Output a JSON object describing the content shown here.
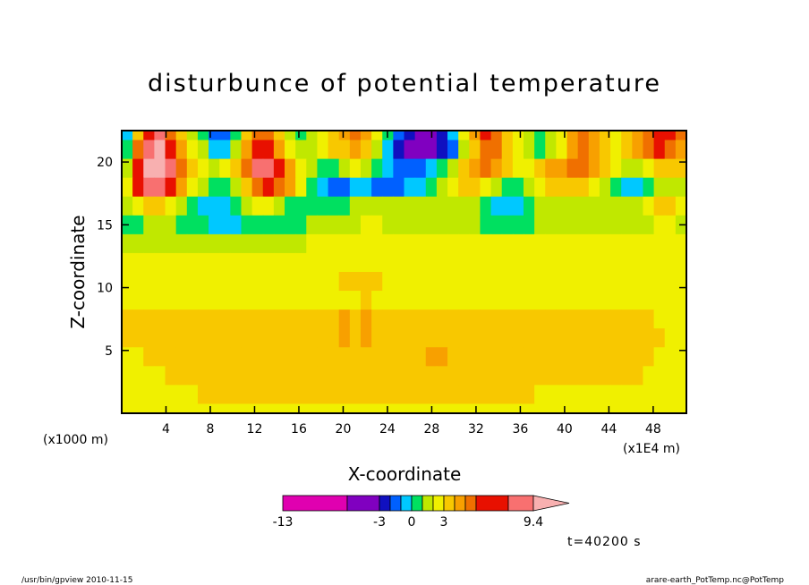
{
  "chart_data": {
    "type": "heatmap",
    "title": "disturbunce of potential temperature",
    "xlabel": "X-coordinate",
    "ylabel": "Z-coordinate",
    "x_unit": "(x1E4 m)",
    "y_unit": "(x1000 m)",
    "x_ticks": [
      "4",
      "8",
      "12",
      "16",
      "20",
      "24",
      "28",
      "32",
      "36",
      "40",
      "44",
      "48"
    ],
    "y_ticks": [
      "5",
      "10",
      "15",
      "20"
    ],
    "xlim": [
      0,
      51
    ],
    "ylim": [
      0,
      22.5
    ],
    "colorbar": {
      "labels": [
        "-13",
        "-3",
        "0",
        "3",
        "9.4"
      ],
      "colors": [
        "#e000b0",
        "#8000c0",
        "#1010c0",
        "#0060ff",
        "#00c8ff",
        "#00e060",
        "#c0e800",
        "#f0f000",
        "#f8c800",
        "#f8a000",
        "#f07000",
        "#e81000",
        "#f87070",
        "#f8b0b0"
      ]
    },
    "time_label": "t=40200 s",
    "rows": [
      {
        "z": 22.5,
        "values": [
          4,
          8,
          11,
          12,
          10,
          8,
          6,
          5,
          3,
          3,
          5,
          8,
          10,
          10,
          8,
          6,
          5,
          6,
          7,
          8,
          9,
          10,
          9,
          7,
          5,
          3,
          2,
          1,
          1,
          2,
          4,
          7,
          9,
          11,
          10,
          8,
          7,
          6,
          5,
          6,
          7,
          9,
          10,
          9,
          8,
          7,
          8,
          9,
          10,
          11,
          11,
          10
        ]
      },
      {
        "z": 21.0,
        "values": [
          5,
          10,
          12,
          13,
          11,
          9,
          7,
          6,
          4,
          4,
          6,
          9,
          11,
          11,
          9,
          7,
          6,
          6,
          7,
          8,
          8,
          9,
          8,
          6,
          4,
          2,
          1,
          1,
          1,
          2,
          3,
          6,
          8,
          10,
          10,
          8,
          7,
          6,
          5,
          6,
          7,
          9,
          10,
          9,
          8,
          7,
          8,
          9,
          10,
          11,
          10,
          9
        ]
      },
      {
        "z": 19.5,
        "values": [
          6,
          11,
          13,
          13,
          12,
          10,
          8,
          7,
          6,
          7,
          8,
          10,
          12,
          12,
          11,
          9,
          7,
          6,
          5,
          5,
          6,
          7,
          6,
          5,
          4,
          3,
          3,
          3,
          4,
          5,
          6,
          8,
          9,
          10,
          9,
          8,
          7,
          7,
          8,
          9,
          9,
          10,
          10,
          9,
          8,
          7,
          6,
          6,
          7,
          8,
          8,
          8
        ]
      },
      {
        "z": 18.0,
        "values": [
          7,
          11,
          12,
          12,
          11,
          9,
          7,
          6,
          5,
          5,
          6,
          8,
          10,
          11,
          10,
          9,
          7,
          5,
          4,
          3,
          3,
          4,
          4,
          3,
          3,
          3,
          4,
          4,
          5,
          6,
          7,
          8,
          8,
          7,
          6,
          5,
          5,
          6,
          7,
          8,
          8,
          8,
          8,
          7,
          6,
          5,
          4,
          4,
          5,
          6,
          6,
          6
        ]
      },
      {
        "z": 16.5,
        "values": [
          6,
          7,
          8,
          8,
          7,
          6,
          5,
          4,
          4,
          4,
          5,
          6,
          7,
          7,
          6,
          5,
          5,
          5,
          5,
          5,
          5,
          6,
          6,
          6,
          6,
          6,
          6,
          6,
          6,
          6,
          6,
          6,
          6,
          5,
          4,
          4,
          4,
          5,
          6,
          6,
          6,
          6,
          6,
          6,
          6,
          6,
          6,
          6,
          7,
          8,
          8,
          7
        ]
      },
      {
        "z": 15.0,
        "values": [
          5,
          5,
          6,
          6,
          6,
          5,
          5,
          5,
          4,
          4,
          4,
          5,
          5,
          5,
          5,
          5,
          5,
          6,
          6,
          6,
          6,
          6,
          7,
          7,
          6,
          6,
          6,
          6,
          6,
          6,
          6,
          6,
          6,
          5,
          5,
          5,
          5,
          5,
          6,
          6,
          6,
          6,
          6,
          6,
          6,
          6,
          6,
          6,
          6,
          7,
          7,
          6
        ]
      },
      {
        "z": 13.5,
        "values": [
          6,
          6,
          6,
          6,
          6,
          6,
          6,
          6,
          6,
          6,
          6,
          6,
          6,
          6,
          6,
          6,
          6,
          7,
          7,
          7,
          7,
          7,
          7,
          7,
          7,
          7,
          7,
          7,
          7,
          7,
          7,
          7,
          7,
          7,
          7,
          7,
          7,
          7,
          7,
          7,
          7,
          7,
          7,
          7,
          7,
          7,
          7,
          7,
          7,
          7,
          7,
          7
        ]
      },
      {
        "z": 12.0,
        "values": [
          7,
          7,
          7,
          7,
          7,
          7,
          7,
          7,
          7,
          7,
          7,
          7,
          7,
          7,
          7,
          7,
          7,
          7,
          7,
          7,
          7,
          7,
          7,
          7,
          7,
          7,
          7,
          7,
          7,
          7,
          7,
          7,
          7,
          7,
          7,
          7,
          7,
          7,
          7,
          7,
          7,
          7,
          7,
          7,
          7,
          7,
          7,
          7,
          7,
          7,
          7,
          7
        ]
      },
      {
        "z": 10.5,
        "values": [
          7,
          7,
          7,
          7,
          7,
          7,
          7,
          7,
          7,
          7,
          7,
          7,
          7,
          7,
          7,
          7,
          7,
          7,
          7,
          7,
          8,
          8,
          8,
          8,
          7,
          7,
          7,
          7,
          7,
          7,
          7,
          7,
          7,
          7,
          7,
          7,
          7,
          7,
          7,
          7,
          7,
          7,
          7,
          7,
          7,
          7,
          7,
          7,
          7,
          7,
          7,
          7
        ]
      },
      {
        "z": 9.0,
        "values": [
          7,
          7,
          7,
          7,
          7,
          7,
          7,
          7,
          7,
          7,
          7,
          7,
          7,
          7,
          7,
          7,
          7,
          7,
          7,
          7,
          7,
          7,
          8,
          7,
          7,
          7,
          7,
          7,
          7,
          7,
          7,
          7,
          7,
          7,
          7,
          7,
          7,
          7,
          7,
          7,
          7,
          7,
          7,
          7,
          7,
          7,
          7,
          7,
          7,
          7,
          7,
          7
        ]
      },
      {
        "z": 7.5,
        "values": [
          8,
          8,
          8,
          8,
          8,
          8,
          8,
          8,
          8,
          8,
          8,
          8,
          8,
          8,
          8,
          8,
          8,
          8,
          8,
          8,
          9,
          8,
          9,
          8,
          8,
          8,
          8,
          8,
          8,
          8,
          8,
          8,
          8,
          8,
          8,
          8,
          8,
          8,
          8,
          8,
          8,
          8,
          8,
          8,
          8,
          8,
          8,
          8,
          8,
          7,
          7,
          7
        ]
      },
      {
        "z": 6.0,
        "values": [
          8,
          8,
          8,
          8,
          8,
          8,
          8,
          8,
          8,
          8,
          8,
          8,
          8,
          8,
          8,
          8,
          8,
          8,
          8,
          8,
          9,
          8,
          9,
          8,
          8,
          8,
          8,
          8,
          8,
          8,
          8,
          8,
          8,
          8,
          8,
          8,
          8,
          8,
          8,
          8,
          8,
          8,
          8,
          8,
          8,
          8,
          8,
          8,
          8,
          8,
          7,
          7
        ]
      },
      {
        "z": 4.5,
        "values": [
          7,
          7,
          8,
          8,
          8,
          8,
          8,
          8,
          8,
          8,
          8,
          8,
          8,
          8,
          8,
          8,
          8,
          8,
          8,
          8,
          8,
          8,
          8,
          8,
          8,
          8,
          8,
          8,
          9,
          9,
          8,
          8,
          8,
          8,
          8,
          8,
          8,
          8,
          8,
          8,
          8,
          8,
          8,
          8,
          8,
          8,
          8,
          8,
          8,
          7,
          7,
          7
        ]
      },
      {
        "z": 3.0,
        "values": [
          7,
          7,
          7,
          7,
          8,
          8,
          8,
          8,
          8,
          8,
          8,
          8,
          8,
          8,
          8,
          8,
          8,
          8,
          8,
          8,
          8,
          8,
          8,
          8,
          8,
          8,
          8,
          8,
          8,
          8,
          8,
          8,
          8,
          8,
          8,
          8,
          8,
          8,
          8,
          8,
          8,
          8,
          8,
          8,
          8,
          8,
          8,
          8,
          7,
          7,
          7,
          7
        ]
      },
      {
        "z": 1.5,
        "values": [
          7,
          7,
          7,
          7,
          7,
          7,
          7,
          8,
          8,
          8,
          8,
          8,
          8,
          8,
          8,
          8,
          8,
          8,
          8,
          8,
          8,
          8,
          8,
          8,
          8,
          8,
          8,
          8,
          8,
          8,
          8,
          8,
          8,
          8,
          8,
          8,
          8,
          8,
          7,
          7,
          7,
          7,
          7,
          7,
          7,
          7,
          7,
          7,
          7,
          7,
          7,
          7
        ]
      },
      {
        "z": 0.0,
        "values": [
          7,
          7,
          7,
          7,
          7,
          7,
          7,
          7,
          7,
          7,
          7,
          7,
          7,
          7,
          7,
          7,
          7,
          7,
          7,
          7,
          7,
          7,
          7,
          7,
          7,
          7,
          7,
          7,
          7,
          7,
          7,
          7,
          7,
          7,
          7,
          7,
          7,
          7,
          7,
          7,
          7,
          7,
          7,
          7,
          7,
          7,
          7,
          7,
          7,
          7,
          7,
          7
        ]
      }
    ]
  },
  "footer": {
    "left": "/usr/bin/gpview  2010-11-15",
    "right": "arare-earth_PotTemp.nc@PotTemp"
  }
}
